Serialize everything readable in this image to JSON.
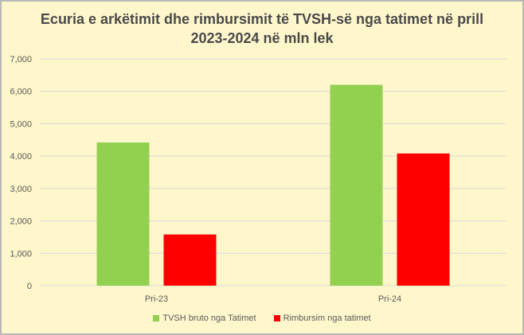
{
  "chart_data": {
    "type": "bar",
    "title_line1": "Ecuria e arkëtimit dhe rimbursimit të TVSH-së nga tatimet në prill",
    "title_line2": "2023-2024 në mln lek",
    "categories": [
      "Pri-23",
      "Pri-24"
    ],
    "series": [
      {
        "name": "TVSH bruto nga Tatimet",
        "color": "#92d050",
        "values": [
          4420,
          6200
        ]
      },
      {
        "name": "Rimbursim nga tatimet",
        "color": "#ff0000",
        "values": [
          1580,
          4080
        ]
      }
    ],
    "ylim": [
      0,
      7000
    ],
    "yticks": [
      0,
      1000,
      2000,
      3000,
      4000,
      5000,
      6000,
      7000
    ],
    "ytick_labels": [
      "0",
      "1,000",
      "2,000",
      "3,000",
      "4,000",
      "5,000",
      "6,000",
      "7,000"
    ],
    "grid": true,
    "legend_position": "bottom",
    "colors": {
      "background": "#fff7cc",
      "gridline": "#d9d9d9",
      "text": "#595959"
    }
  }
}
